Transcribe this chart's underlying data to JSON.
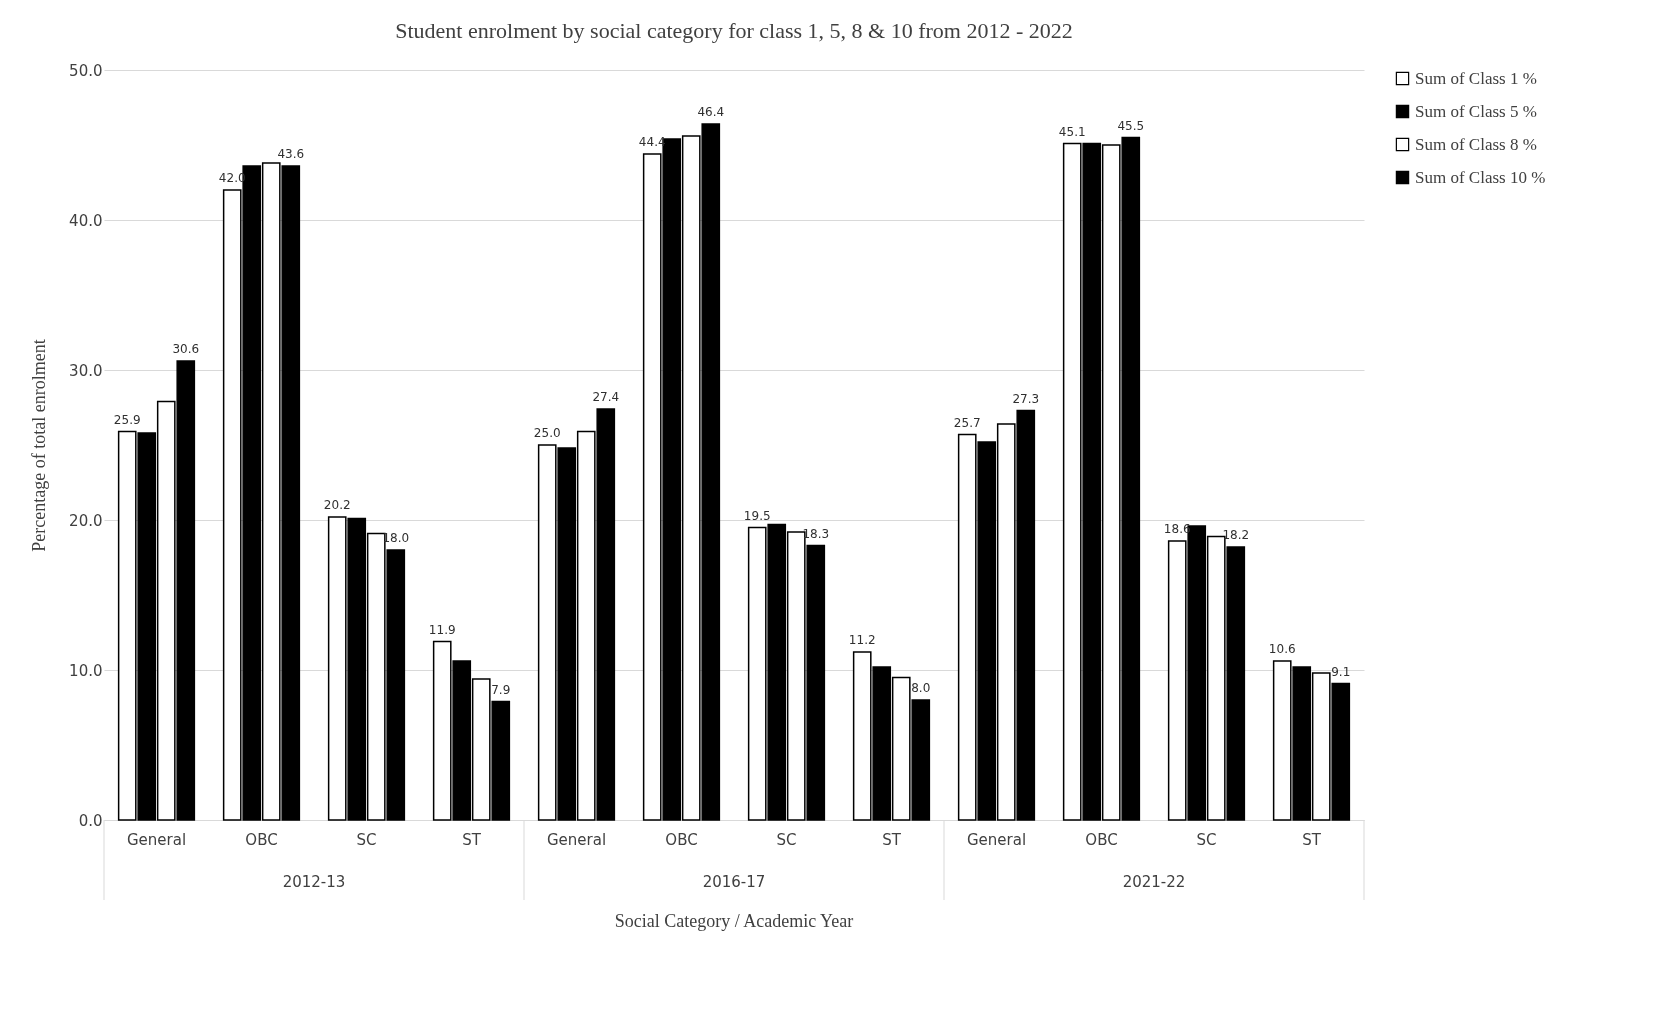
{
  "chart_data": {
    "type": "bar",
    "title": "Student enrolment by social category for class 1, 5, 8 & 10 from 2012 - 2022",
    "xlabel": "Social Category / Academic Year",
    "ylabel": "Percentage  of total enrolment",
    "categories": [
      "General",
      "OBC",
      "SC",
      "ST",
      "General",
      "OBC",
      "SC",
      "ST",
      "General",
      "OBC",
      "SC",
      "ST"
    ],
    "series": [
      {
        "name": "Sum of Class 1 %",
        "color": "#ffffff",
        "values": [
          25.9,
          42.0,
          20.2,
          11.9,
          25.0,
          44.4,
          19.5,
          11.2,
          25.7,
          45.1,
          18.6,
          10.6
        ],
        "value_labels": [
          "25.9",
          "42.0",
          "20.2",
          "11.9",
          "25.0",
          "44.4",
          "19.5",
          "11.2",
          "25.7",
          "45.1",
          "18.6",
          "10.6"
        ]
      },
      {
        "name": "Sum of Class 5 %",
        "color": "#000000",
        "values": [
          25.8,
          43.6,
          20.1,
          10.6,
          24.8,
          45.4,
          19.7,
          10.2,
          25.2,
          45.1,
          19.6,
          10.2
        ]
      },
      {
        "name": "Sum of Class 8 %",
        "color": "#ffffff",
        "values": [
          27.9,
          43.8,
          19.1,
          9.4,
          25.9,
          45.6,
          19.2,
          9.5,
          26.4,
          45.0,
          18.9,
          9.8
        ]
      },
      {
        "name": "Sum of Class 10 %",
        "color": "#000000",
        "values": [
          30.6,
          43.6,
          18.0,
          7.9,
          27.4,
          46.4,
          18.3,
          8.0,
          27.3,
          45.5,
          18.2,
          9.1
        ],
        "value_labels": [
          "30.6",
          "43.6",
          "18.0",
          "7.9",
          "27.4",
          "46.4",
          "18.3",
          "8.0",
          "27.3",
          "45.5",
          "18.2",
          "9.1"
        ]
      }
    ],
    "ylim": [
      0,
      50
    ],
    "yticks": [
      {
        "value": 0,
        "label": "0.0"
      },
      {
        "value": 10,
        "label": "10.0"
      },
      {
        "value": 20,
        "label": "20.0"
      },
      {
        "value": 30,
        "label": "30.0"
      },
      {
        "value": 40,
        "label": "40.0"
      },
      {
        "value": 50,
        "label": "50.0"
      }
    ],
    "grid": "y",
    "legend": "right",
    "annotations": [
      "2012-13",
      "2016-17",
      "2021-22"
    ]
  }
}
